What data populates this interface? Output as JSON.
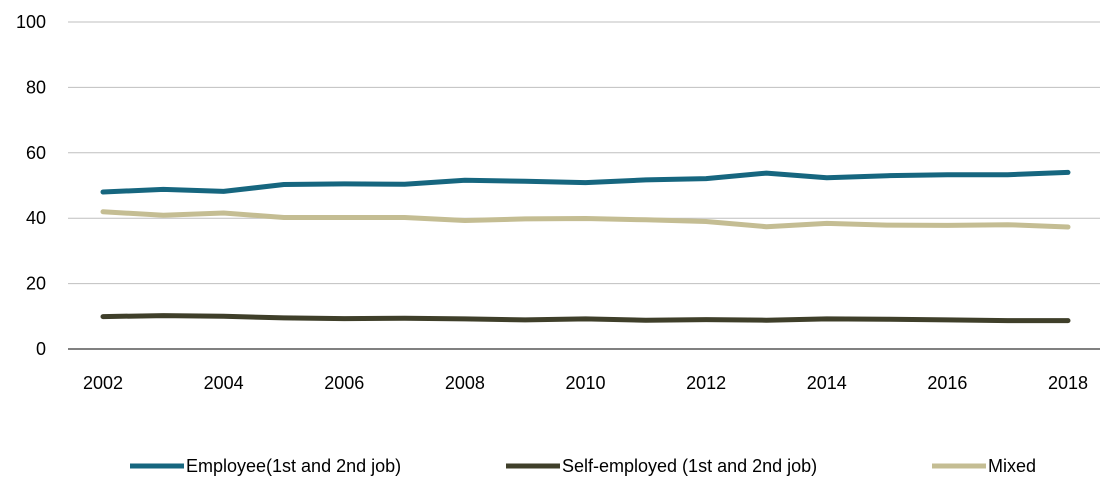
{
  "chart_data": {
    "type": "line",
    "title": "",
    "xlabel": "",
    "ylabel": "",
    "x": [
      2002,
      2003,
      2004,
      2005,
      2006,
      2007,
      2008,
      2009,
      2010,
      2011,
      2012,
      2013,
      2014,
      2015,
      2016,
      2017,
      2018
    ],
    "x_tick_labels": [
      "2002",
      "2004",
      "2006",
      "2008",
      "2010",
      "2012",
      "2014",
      "2016",
      "2018"
    ],
    "y_tick_labels": [
      "0",
      "20",
      "40",
      "60",
      "80",
      "100"
    ],
    "ylim": [
      0,
      100
    ],
    "grid": "horizontal",
    "legend_position": "bottom",
    "series": [
      {
        "name": "Employee(1st and 2nd job)",
        "color": "#16667f",
        "values": [
          48.0,
          48.8,
          48.2,
          50.3,
          50.5,
          50.4,
          51.6,
          51.3,
          50.9,
          51.7,
          52.1,
          53.8,
          52.4,
          53.0,
          53.3,
          53.3,
          54.0
        ]
      },
      {
        "name": "Self-employed (1st and 2nd job)",
        "color": "#3f3f2a",
        "values": [
          9.9,
          10.2,
          10.0,
          9.5,
          9.3,
          9.4,
          9.2,
          8.9,
          9.2,
          8.8,
          9.0,
          8.8,
          9.2,
          9.1,
          8.9,
          8.7,
          8.7
        ]
      },
      {
        "name": "Mixed",
        "color": "#c4bd93",
        "values": [
          42.0,
          40.9,
          41.6,
          40.2,
          40.2,
          40.2,
          39.3,
          39.8,
          39.9,
          39.5,
          39.0,
          37.4,
          38.4,
          37.9,
          37.8,
          38.0,
          37.3
        ]
      }
    ]
  }
}
